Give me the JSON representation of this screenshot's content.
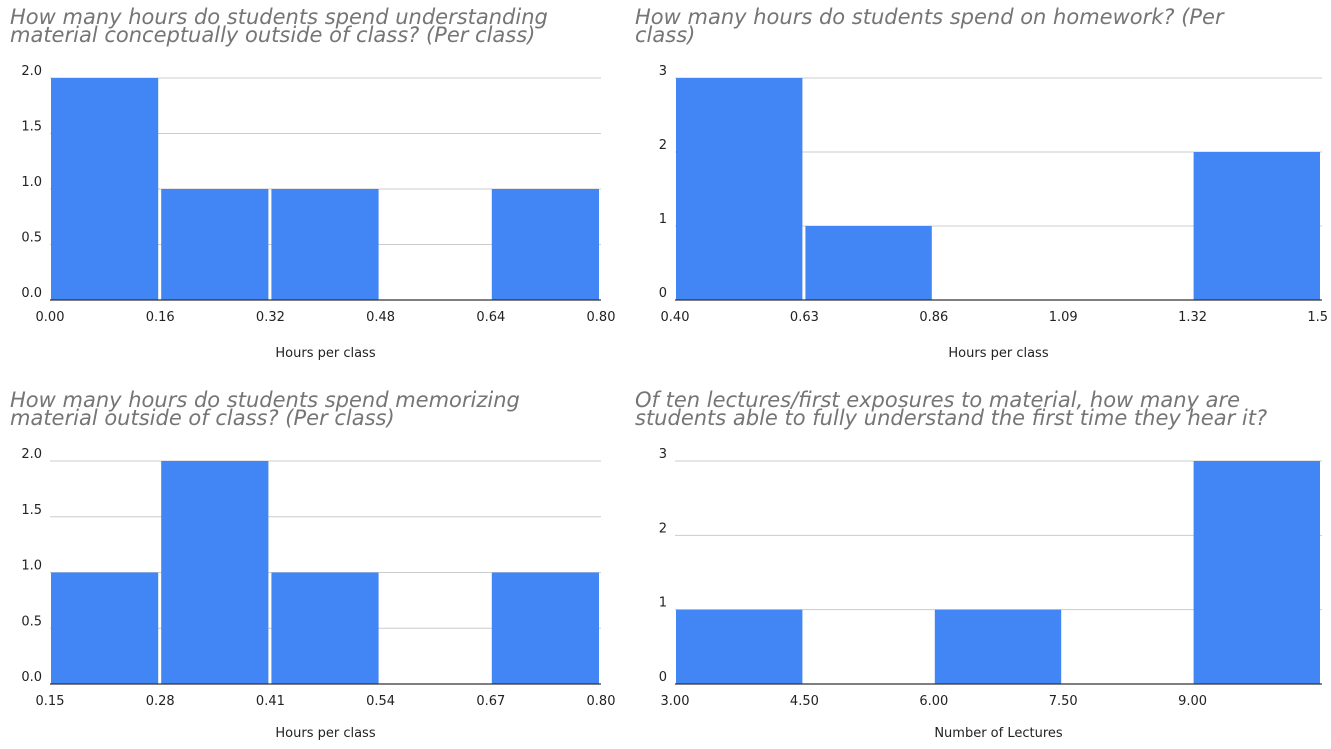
{
  "colors": {
    "bar": "#4285f4",
    "grid": "#cccccc",
    "axis": "#333333",
    "title": "#757575",
    "text": "#222222"
  },
  "chart_data": [
    {
      "type": "bar",
      "title": "How many hours do students spend understanding\nmaterial conceptually outside of class? (Per class)",
      "xlabel": "Hours per class",
      "ylabel": "",
      "x_ticks": [
        "0.00",
        "0.16",
        "0.32",
        "0.48",
        "0.64",
        "0.80"
      ],
      "y_ticks": [
        "0.0",
        "0.5",
        "1.0",
        "1.5",
        "2.0"
      ],
      "ylim": [
        0,
        2
      ],
      "values": [
        2,
        1,
        1,
        0,
        1
      ],
      "grid": true
    },
    {
      "type": "bar",
      "title": "How many hours do students spend on homework? (Per\nclass)",
      "xlabel": "Hours per class",
      "ylabel": "",
      "x_ticks": [
        "0.40",
        "0.63",
        "0.86",
        "1.09",
        "1.32",
        "1.5"
      ],
      "y_ticks": [
        "0",
        "1",
        "2",
        "3"
      ],
      "ylim": [
        0,
        3
      ],
      "values": [
        3,
        1,
        0,
        0,
        2
      ],
      "grid": true
    },
    {
      "type": "bar",
      "title": "How many hours do students spend memorizing\nmaterial outside of class? (Per class)",
      "xlabel": "Hours per class",
      "ylabel": "",
      "x_ticks": [
        "0.15",
        "0.28",
        "0.41",
        "0.54",
        "0.67",
        "0.80"
      ],
      "y_ticks": [
        "0.0",
        "0.5",
        "1.0",
        "1.5",
        "2.0"
      ],
      "ylim": [
        0,
        2
      ],
      "values": [
        1,
        2,
        1,
        0,
        1
      ],
      "grid": true
    },
    {
      "type": "bar",
      "title": "Of ten lectures/first exposures to material, how many are\nstudents able to fully understand the first time they hear it?",
      "xlabel": "Number of Lectures",
      "ylabel": "",
      "x_ticks": [
        "3.00",
        "4.50",
        "6.00",
        "7.50",
        "9.00",
        ""
      ],
      "y_ticks": [
        "0",
        "1",
        "2",
        "3"
      ],
      "ylim": [
        0,
        3
      ],
      "values": [
        1,
        0,
        1,
        0,
        3
      ],
      "grid": true
    }
  ]
}
